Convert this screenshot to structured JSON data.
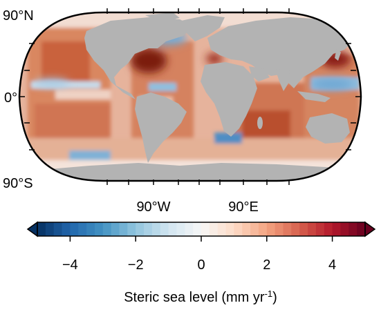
{
  "map": {
    "projection": "robinson",
    "land_color": "#b3b3b3",
    "ocean_base_color": "#e8b8a3",
    "lat_labels": {
      "north": "90°N",
      "equator": "0°",
      "south": "90°S"
    },
    "lon_labels": {
      "west": "90°W",
      "east": "90°E"
    }
  },
  "colorbar": {
    "min": -5,
    "max": 5,
    "ticks": [
      "−4",
      "−2",
      "0",
      "2",
      "4"
    ],
    "tick_values": [
      -4,
      -2,
      0,
      2,
      4
    ],
    "n_bins": 40,
    "extend": "both",
    "colors": [
      "#053061",
      "#2166ac",
      "#4393c3",
      "#92c5de",
      "#d1e5f0",
      "#f7f7f7",
      "#fddbc7",
      "#f4a582",
      "#d6604d",
      "#b2182b",
      "#67001f"
    ],
    "label_text": "Steric sea level (mm yr",
    "label_sup": "-1",
    "label_end": ")"
  }
}
